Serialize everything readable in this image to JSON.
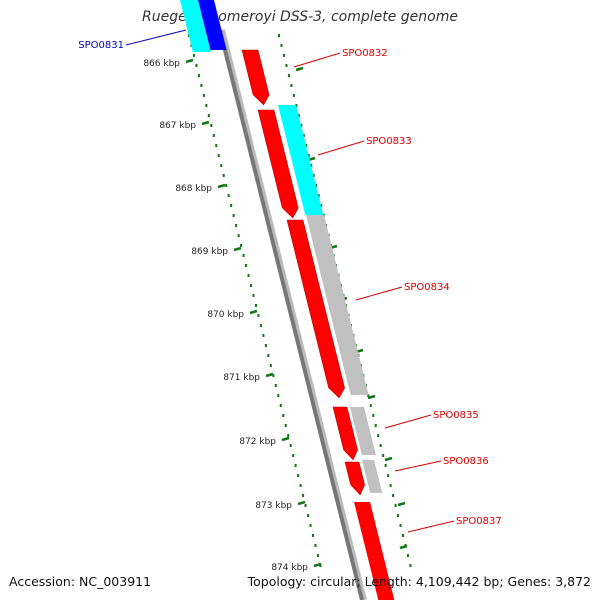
{
  "header": {
    "title": "Ruegeria pomeroyi DSS-3, complete genome"
  },
  "footer": {
    "accession": "Accession: NC_003911",
    "summary": "Topology: circular; Length: 4,109,442 bp; Genes: 3,872"
  },
  "scale_labels": [
    "866 kbp",
    "867 kbp",
    "868 kbp",
    "869 kbp",
    "870 kbp",
    "871 kbp",
    "872 kbp",
    "873 kbp",
    "874 kbp"
  ],
  "genes": [
    {
      "label": "SPO0831",
      "strand": "reverse",
      "color": "#0000cc"
    },
    {
      "label": "SPO0832",
      "strand": "forward",
      "color": "#dd0000"
    },
    {
      "label": "SPO0833",
      "strand": "forward",
      "color": "#dd0000"
    },
    {
      "label": "SPO0834",
      "strand": "forward",
      "color": "#dd0000"
    },
    {
      "label": "SPO0835",
      "strand": "forward",
      "color": "#dd0000"
    },
    {
      "label": "SPO0836",
      "strand": "forward",
      "color": "#dd0000"
    },
    {
      "label": "SPO0837",
      "strand": "forward",
      "color": "#dd0000"
    }
  ],
  "colors": {
    "cds_forward": "#ff0000",
    "cds_reverse": "#0000ff",
    "blast_hit_cyan": "#00ffff",
    "blast_hit_gray": "#c0c0c0",
    "backbone": "#888888",
    "ruler": "#117711"
  }
}
